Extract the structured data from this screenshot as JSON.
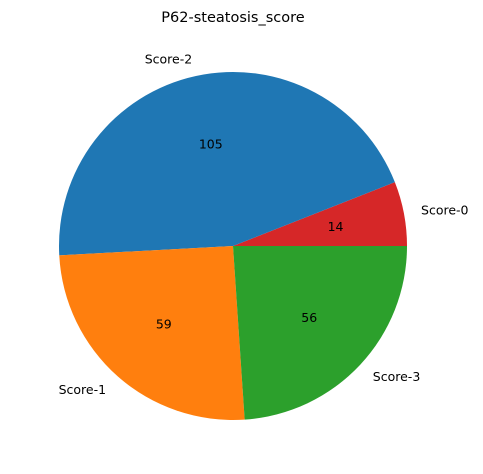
{
  "chart_data": {
    "type": "pie",
    "title": "P62-steatosis_score",
    "slices": [
      {
        "label": "Score-0",
        "value": 14,
        "color": "#d62728"
      },
      {
        "label": "Score-2",
        "value": 105,
        "color": "#1f77b4"
      },
      {
        "label": "Score-1",
        "value": 59,
        "color": "#ff7f0e"
      },
      {
        "label": "Score-3",
        "value": 56,
        "color": "#2ca02c"
      }
    ],
    "start_angle_deg": 0,
    "direction": "counterclockwise"
  }
}
